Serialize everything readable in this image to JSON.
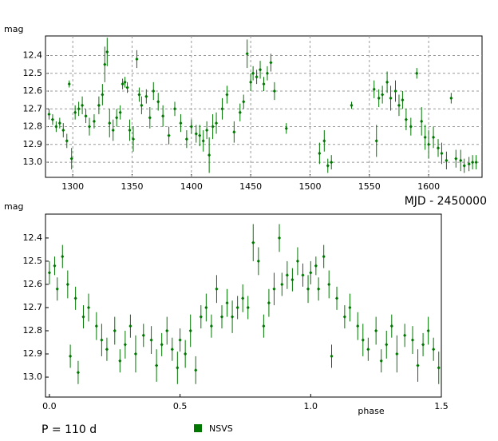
{
  "chart_data": [
    {
      "type": "scatter",
      "y_label": "mag",
      "x_label": "MJD - 2450000",
      "xlim": [
        1277,
        1645
      ],
      "ylim": [
        13.085,
        12.29
      ],
      "xticks": [
        1300,
        1350,
        1400,
        1450,
        1500,
        1550,
        1600
      ],
      "yticks": [
        12.4,
        12.5,
        12.6,
        12.7,
        12.8,
        12.9,
        {
          "value": 13,
          "label": "13.0"
        }
      ],
      "grid": true,
      "series": [
        {
          "color": "#007700",
          "x": [
            1280,
            1283,
            1286,
            1289,
            1292,
            1295,
            1297,
            1299,
            1302,
            1305,
            1308,
            1311,
            1314,
            1318,
            1322,
            1325,
            1327,
            1329,
            1331,
            1334,
            1337,
            1340,
            1342,
            1344,
            1346,
            1348,
            1351,
            1354,
            1356,
            1358,
            1362,
            1365,
            1368,
            1372,
            1376,
            1381,
            1386,
            1391,
            1396,
            1400,
            1404,
            1407,
            1410,
            1413,
            1415,
            1418,
            1421,
            1426,
            1430,
            1436,
            1441,
            1444,
            1447,
            1450,
            1452,
            1455,
            1458,
            1461,
            1464,
            1467,
            1470,
            1480,
            1508,
            1512,
            1515,
            1518,
            1535,
            1554,
            1556,
            1558,
            1561,
            1565,
            1568,
            1572,
            1575,
            1578,
            1581,
            1585,
            1590,
            1594,
            1597,
            1600,
            1604,
            1608,
            1611,
            1615,
            1619,
            1623,
            1627,
            1630,
            1634,
            1637,
            1640
          ],
          "values": [
            12.73,
            12.76,
            12.8,
            12.78,
            12.82,
            12.88,
            12.56,
            12.98,
            12.72,
            12.7,
            12.68,
            12.74,
            12.8,
            12.77,
            12.68,
            12.62,
            12.45,
            12.38,
            12.78,
            12.82,
            12.75,
            12.72,
            12.56,
            12.55,
            12.58,
            12.82,
            12.87,
            12.42,
            12.62,
            12.68,
            12.63,
            12.75,
            12.6,
            12.66,
            12.74,
            12.85,
            12.7,
            12.78,
            12.87,
            12.8,
            12.84,
            12.85,
            12.88,
            12.82,
            12.96,
            12.8,
            12.78,
            12.7,
            12.62,
            12.83,
            12.72,
            12.66,
            12.39,
            12.55,
            12.5,
            12.52,
            12.48,
            12.56,
            12.5,
            12.44,
            12.6,
            12.81,
            12.95,
            12.88,
            13.02,
            13,
            12.68,
            12.59,
            12.88,
            12.64,
            12.62,
            12.55,
            12.64,
            12.6,
            12.68,
            12.65,
            12.76,
            12.8,
            12.5,
            12.77,
            12.86,
            12.9,
            12.86,
            12.92,
            12.95,
            12.99,
            12.64,
            12.98,
            12.99,
            13.02,
            13.01,
            13,
            13
          ],
          "errors": [
            0.03,
            0.03,
            0.03,
            0.03,
            0.04,
            0.04,
            0.02,
            0.06,
            0.04,
            0.04,
            0.05,
            0.04,
            0.05,
            0.04,
            0.05,
            0.06,
            0.1,
            0.08,
            0.08,
            0.06,
            0.05,
            0.04,
            0.03,
            0.03,
            0.03,
            0.06,
            0.07,
            0.05,
            0.04,
            0.05,
            0.04,
            0.06,
            0.05,
            0.05,
            0.06,
            0.05,
            0.04,
            0.05,
            0.05,
            0.04,
            0.05,
            0.06,
            0.06,
            0.05,
            0.1,
            0.07,
            0.06,
            0.06,
            0.05,
            0.06,
            0.05,
            0.04,
            0.08,
            0.05,
            0.04,
            0.04,
            0.05,
            0.04,
            0.04,
            0.05,
            0.05,
            0.03,
            0.06,
            0.06,
            0.04,
            0.04,
            0.02,
            0.05,
            0.09,
            0.05,
            0.05,
            0.06,
            0.07,
            0.06,
            0.06,
            0.05,
            0.06,
            0.05,
            0.03,
            0.08,
            0.07,
            0.08,
            0.06,
            0.05,
            0.06,
            0.05,
            0.03,
            0.05,
            0.06,
            0.04,
            0.04,
            0.04,
            0.04
          ]
        }
      ]
    },
    {
      "type": "scatter",
      "y_label": "mag",
      "x_label": "phase",
      "annotation": "P = 110 d",
      "xlim": [
        -0.015,
        1.5
      ],
      "ylim": [
        13.086,
        12.297
      ],
      "xticks": [
        {
          "value": 0,
          "label": "0.0"
        },
        0.5,
        {
          "value": 1,
          "label": "1.0"
        },
        1.5
      ],
      "yticks": [
        12.4,
        12.5,
        12.6,
        12.7,
        12.8,
        12.9,
        {
          "value": 13,
          "label": "13.0"
        }
      ],
      "grid": false,
      "series": [
        {
          "name": "NSVS",
          "color": "#007700",
          "x": [
            0,
            0.02,
            0.03,
            0.05,
            0.07,
            0.08,
            0.1,
            0.11,
            0.13,
            0.15,
            0.18,
            0.2,
            0.22,
            0.25,
            0.27,
            0.29,
            0.31,
            0.33,
            0.36,
            0.39,
            0.41,
            0.43,
            0.45,
            0.47,
            0.49,
            0.5,
            0.52,
            0.54,
            0.56,
            0.58,
            0.6,
            0.62,
            0.64,
            0.66,
            0.68,
            0.7,
            0.72,
            0.74,
            0.76,
            0.78,
            0.8,
            0.82,
            0.84,
            0.86,
            0.88,
            0.89,
            0.91,
            0.93,
            0.95,
            0.97,
            0.99,
            1,
            1.02,
            1.03,
            1.05,
            1.07,
            1.08,
            1.1,
            1.13,
            1.15,
            1.18,
            1.2,
            1.22,
            1.25,
            1.27,
            1.29,
            1.31,
            1.33,
            1.36,
            1.39,
            1.41,
            1.43,
            1.45,
            1.47,
            1.49
          ],
          "values": [
            12.55,
            12.52,
            12.62,
            12.48,
            12.6,
            12.91,
            12.66,
            12.98,
            12.74,
            12.7,
            12.78,
            12.84,
            12.88,
            12.8,
            12.93,
            12.86,
            12.78,
            12.9,
            12.82,
            12.84,
            12.95,
            12.86,
            12.8,
            12.88,
            12.96,
            12.84,
            12.9,
            12.8,
            12.97,
            12.74,
            12.7,
            12.78,
            12.62,
            12.74,
            12.68,
            12.74,
            12.7,
            12.66,
            12.7,
            12.42,
            12.5,
            12.78,
            12.68,
            12.62,
            12.4,
            12.6,
            12.56,
            12.58,
            12.5,
            12.56,
            12.62,
            12.55,
            12.52,
            12.62,
            12.48,
            12.6,
            12.91,
            12.66,
            12.74,
            12.7,
            12.78,
            12.84,
            12.88,
            12.8,
            12.93,
            12.86,
            12.78,
            12.9,
            12.82,
            12.84,
            12.95,
            12.86,
            12.8,
            12.88,
            12.96
          ],
          "errors": [
            0.05,
            0.04,
            0.05,
            0.05,
            0.06,
            0.05,
            0.05,
            0.05,
            0.05,
            0.06,
            0.06,
            0.07,
            0.05,
            0.06,
            0.05,
            0.06,
            0.05,
            0.08,
            0.05,
            0.06,
            0.07,
            0.05,
            0.06,
            0.05,
            0.07,
            0.05,
            0.06,
            0.07,
            0.06,
            0.05,
            0.06,
            0.05,
            0.06,
            0.05,
            0.06,
            0.07,
            0.05,
            0.06,
            0.05,
            0.08,
            0.06,
            0.05,
            0.06,
            0.07,
            0.06,
            0.05,
            0.06,
            0.05,
            0.06,
            0.05,
            0.06,
            0.05,
            0.04,
            0.05,
            0.05,
            0.06,
            0.05,
            0.05,
            0.05,
            0.06,
            0.06,
            0.07,
            0.05,
            0.06,
            0.05,
            0.06,
            0.05,
            0.08,
            0.05,
            0.06,
            0.07,
            0.05,
            0.06,
            0.05,
            0.07
          ]
        }
      ]
    }
  ]
}
